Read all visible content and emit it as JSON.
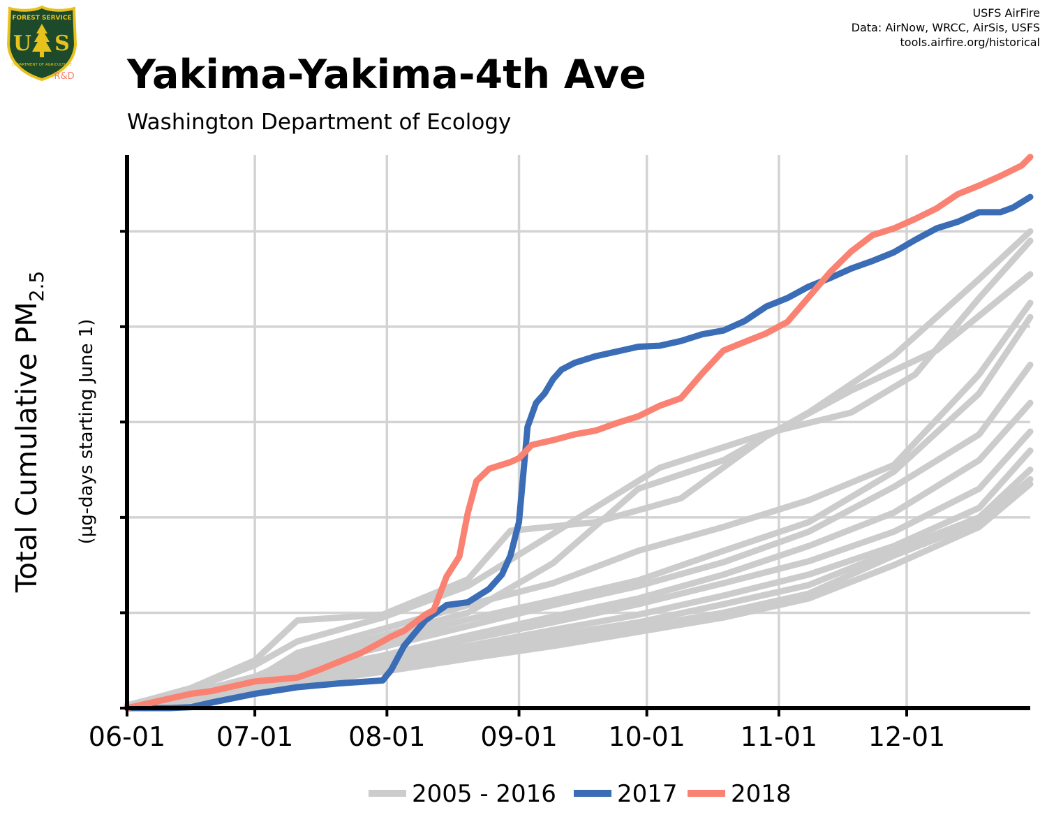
{
  "logo": {
    "top_text": "FOREST SERVICE",
    "mark": "USFS",
    "bottom_text": "DEPARTMENT OF AGRICULTURE",
    "tag": "R&D",
    "icon": "forest-service-shield-icon",
    "colors": {
      "shield": "#1d4a2a",
      "border": "#e8c21c",
      "tag": "#f2836d"
    }
  },
  "credits": {
    "line1": "USFS AirFire",
    "line2": "Data: AirNow, WRCC, AirSis, USFS",
    "line3": "tools.airfire.org/historical"
  },
  "title": "Yakima-Yakima-4th Ave",
  "subtitle": "Washington Department of Ecology",
  "chart_data": {
    "type": "line",
    "ylabel": "Total Cumulative PM",
    "ylabel_subscript": "2.5",
    "ylabel_units": "(µg-days starting June 1)",
    "x_unit": "day of season starting June 1",
    "xlim": [
      0,
      212
    ],
    "ylim": [
      0,
      5800
    ],
    "y_gridlines": [
      0,
      1000,
      2000,
      3000,
      4000,
      5000
    ],
    "y_tick_labels_shown": false,
    "x_ticks": [
      {
        "label": "06-01",
        "day": 0
      },
      {
        "label": "07-01",
        "day": 30
      },
      {
        "label": "08-01",
        "day": 61
      },
      {
        "label": "09-01",
        "day": 92
      },
      {
        "label": "10-01",
        "day": 122
      },
      {
        "label": "11-01",
        "day": 153
      },
      {
        "label": "12-01",
        "day": 183
      }
    ],
    "grid": true,
    "legend": {
      "placement": "bottom",
      "entries": [
        {
          "label": "2005 - 2016",
          "color": "#cccccc"
        },
        {
          "label": "2017",
          "color": "#3a6db5"
        },
        {
          "label": "2018",
          "color": "#fa8272"
        }
      ]
    },
    "series": [
      {
        "group": "2005 - 2016",
        "color": "#cccccc",
        "x": [
          0,
          15,
          30,
          40,
          60,
          80,
          100,
          125,
          150,
          170,
          185,
          200,
          212
        ],
        "y": [
          30,
          200,
          450,
          700,
          950,
          1280,
          1830,
          2520,
          2880,
          3100,
          3500,
          4300,
          4900
        ]
      },
      {
        "group": "2005 - 2016",
        "color": "#cccccc",
        "x": [
          0,
          15,
          30,
          40,
          60,
          80,
          100,
          120,
          140,
          160,
          180,
          200,
          212
        ],
        "y": [
          20,
          160,
          330,
          520,
          760,
          1000,
          1520,
          2300,
          2600,
          3100,
          3700,
          4500,
          5000
        ]
      },
      {
        "group": "2005 - 2016",
        "color": "#cccccc",
        "x": [
          0,
          15,
          30,
          40,
          60,
          80,
          90,
          110,
          130,
          150,
          170,
          190,
          212
        ],
        "y": [
          25,
          210,
          500,
          920,
          980,
          1350,
          1860,
          1950,
          2200,
          2850,
          3330,
          3750,
          4550
        ]
      },
      {
        "group": "2005 - 2016",
        "color": "#cccccc",
        "x": [
          0,
          15,
          30,
          40,
          60,
          80,
          100,
          120,
          140,
          160,
          180,
          200,
          212
        ],
        "y": [
          20,
          150,
          300,
          580,
          830,
          1080,
          1310,
          1650,
          1900,
          2180,
          2550,
          3500,
          4250
        ]
      },
      {
        "group": "2005 - 2016",
        "color": "#cccccc",
        "x": [
          0,
          15,
          30,
          40,
          60,
          80,
          100,
          120,
          140,
          160,
          180,
          200,
          212
        ],
        "y": [
          20,
          140,
          260,
          470,
          700,
          930,
          1130,
          1340,
          1650,
          1950,
          2480,
          3300,
          4100
        ]
      },
      {
        "group": "2005 - 2016",
        "color": "#cccccc",
        "x": [
          0,
          15,
          30,
          40,
          60,
          80,
          100,
          120,
          140,
          160,
          180,
          200,
          212
        ],
        "y": [
          15,
          130,
          250,
          430,
          640,
          860,
          1080,
          1280,
          1530,
          1850,
          2320,
          2870,
          3600
        ]
      },
      {
        "group": "2005 - 2016",
        "color": "#cccccc",
        "x": [
          0,
          15,
          30,
          40,
          60,
          80,
          100,
          120,
          140,
          160,
          180,
          200,
          212
        ],
        "y": [
          15,
          120,
          240,
          380,
          550,
          760,
          960,
          1150,
          1400,
          1700,
          2050,
          2600,
          3200
        ]
      },
      {
        "group": "2005 - 2016",
        "color": "#cccccc",
        "x": [
          0,
          15,
          30,
          40,
          60,
          80,
          100,
          120,
          140,
          160,
          180,
          200,
          212
        ],
        "y": [
          10,
          110,
          220,
          360,
          520,
          720,
          900,
          1090,
          1310,
          1540,
          1850,
          2300,
          2900
        ]
      },
      {
        "group": "2005 - 2016",
        "color": "#cccccc",
        "x": [
          0,
          15,
          30,
          40,
          60,
          80,
          100,
          120,
          140,
          160,
          180,
          200,
          212
        ],
        "y": [
          10,
          100,
          200,
          330,
          480,
          650,
          820,
          980,
          1180,
          1400,
          1700,
          2100,
          2700
        ]
      },
      {
        "group": "2005 - 2016",
        "color": "#cccccc",
        "x": [
          0,
          15,
          30,
          40,
          60,
          80,
          100,
          120,
          140,
          160,
          180,
          200,
          212
        ],
        "y": [
          10,
          90,
          190,
          300,
          440,
          600,
          760,
          900,
          1090,
          1290,
          1650,
          2000,
          2500
        ]
      },
      {
        "group": "2005 - 2016",
        "color": "#cccccc",
        "x": [
          0,
          15,
          30,
          40,
          60,
          80,
          100,
          120,
          140,
          160,
          180,
          200,
          212
        ],
        "y": [
          10,
          85,
          170,
          280,
          410,
          570,
          700,
          850,
          1000,
          1200,
          1600,
          1950,
          2400
        ]
      },
      {
        "group": "2005 - 2016",
        "color": "#cccccc",
        "x": [
          0,
          15,
          30,
          40,
          60,
          80,
          100,
          120,
          140,
          160,
          180,
          200,
          212
        ],
        "y": [
          10,
          80,
          160,
          260,
          380,
          520,
          650,
          800,
          950,
          1150,
          1500,
          1900,
          2350
        ]
      },
      {
        "group": "2017",
        "name": "2017",
        "color": "#3a6db5",
        "x": [
          0,
          10,
          15,
          20,
          30,
          40,
          50,
          60,
          62,
          65,
          70,
          75,
          80,
          85,
          88,
          90,
          92,
          94,
          96,
          98,
          100,
          102,
          105,
          110,
          120,
          125,
          130,
          135,
          140,
          145,
          150,
          155,
          160,
          165,
          170,
          175,
          180,
          185,
          190,
          195,
          200,
          205,
          208,
          212
        ],
        "y": [
          0,
          0,
          10,
          60,
          150,
          220,
          260,
          290,
          400,
          650,
          920,
          1080,
          1110,
          1250,
          1400,
          1600,
          1950,
          2950,
          3200,
          3300,
          3450,
          3550,
          3620,
          3690,
          3790,
          3800,
          3850,
          3920,
          3960,
          4060,
          4210,
          4300,
          4420,
          4510,
          4610,
          4690,
          4780,
          4910,
          5030,
          5100,
          5200,
          5200,
          5250,
          5360
        ]
      },
      {
        "group": "2018",
        "name": "2018",
        "color": "#fa8272",
        "x": [
          0,
          10,
          15,
          20,
          25,
          30,
          40,
          45,
          50,
          55,
          60,
          62,
          65,
          70,
          72,
          75,
          78,
          80,
          82,
          85,
          90,
          92,
          95,
          100,
          105,
          110,
          115,
          120,
          125,
          130,
          135,
          140,
          145,
          150,
          155,
          160,
          165,
          170,
          175,
          180,
          185,
          190,
          195,
          200,
          205,
          210,
          212
        ],
        "y": [
          0,
          100,
          150,
          180,
          230,
          280,
          320,
          400,
          490,
          580,
          700,
          750,
          810,
          980,
          1030,
          1380,
          1590,
          2050,
          2380,
          2510,
          2580,
          2620,
          2760,
          2810,
          2870,
          2910,
          2990,
          3060,
          3170,
          3250,
          3510,
          3750,
          3840,
          3930,
          4050,
          4310,
          4570,
          4790,
          4960,
          5030,
          5130,
          5240,
          5390,
          5480,
          5580,
          5690,
          5780
        ]
      }
    ]
  }
}
